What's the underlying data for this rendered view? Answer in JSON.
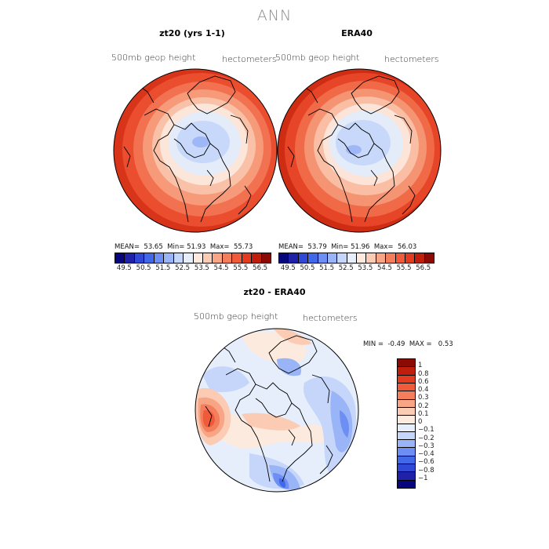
{
  "figure": {
    "title": "ANN"
  },
  "panels": [
    {
      "title": "zt20 (yrs 1-1)",
      "left_label": "500mb geop height",
      "right_label": "hectometers",
      "stats": {
        "mean_label": "MEAN=",
        "mean": "53.65",
        "min_label": "Min=",
        "min": "51.93",
        "max_label": "Max=",
        "max": "55.73"
      }
    },
    {
      "title": "ERA40",
      "left_label": "500mb geop height",
      "right_label": "hectometers",
      "stats": {
        "mean_label": "MEAN=",
        "mean": "53.79",
        "min_label": "Min=",
        "min": "51.96",
        "max_label": "Max=",
        "max": "56.03"
      }
    },
    {
      "title": "zt20 - ERA40",
      "left_label": "500mb geop height",
      "right_label": "hectometers",
      "stats": {
        "min_label": "MIN =",
        "min": "-0.49",
        "max_label": "MAX =",
        "max": "0.53"
      }
    }
  ],
  "colorbar_abs": {
    "ticks": [
      "49.5",
      "50.5",
      "51.5",
      "52.5",
      "53.5",
      "54.5",
      "55.5",
      "56.5"
    ],
    "colors": [
      "#08067f",
      "#1f22a8",
      "#2f48d6",
      "#4068e8",
      "#6d8ef3",
      "#9ab4f8",
      "#c6d6fb",
      "#e6eefb",
      "#fdeadf",
      "#fbcbb3",
      "#f8a585",
      "#f47d5c",
      "#ee5a3a",
      "#e23b1f",
      "#c01e0d",
      "#8b0b04"
    ]
  },
  "colorbar_diff": {
    "labels": [
      "1",
      "0.8",
      "0.6",
      "0.4",
      "0.3",
      "0.2",
      "0.1",
      "0",
      "−0.1",
      "−0.2",
      "−0.3",
      "−0.4",
      "−0.6",
      "−0.8",
      "−1"
    ],
    "colors": [
      "#8b0b04",
      "#c01e0d",
      "#e23b1f",
      "#ee5a3a",
      "#f47d5c",
      "#f8a585",
      "#fbcbb3",
      "#fdeadf",
      "#e6eefb",
      "#c6d6fb",
      "#9ab4f8",
      "#6d8ef3",
      "#4068e8",
      "#2f48d6",
      "#1f22a8",
      "#08067f"
    ]
  },
  "chart_data": [
    {
      "type": "heatmap",
      "projection": "polar stereographic (north pole)",
      "title": "zt20 (yrs 1-1)",
      "variable": "500mb geop height",
      "units": "hectometers",
      "levels": [
        49.5,
        50.5,
        51.5,
        52.5,
        53.5,
        54.5,
        55.5,
        56.5
      ],
      "mean": 53.65,
      "min": 51.93,
      "max": 55.73
    },
    {
      "type": "heatmap",
      "projection": "polar stereographic (north pole)",
      "title": "ERA40",
      "variable": "500mb geop height",
      "units": "hectometers",
      "levels": [
        49.5,
        50.5,
        51.5,
        52.5,
        53.5,
        54.5,
        55.5,
        56.5
      ],
      "mean": 53.79,
      "min": 51.96,
      "max": 56.03
    },
    {
      "type": "heatmap",
      "projection": "polar stereographic (north pole)",
      "title": "zt20 - ERA40",
      "variable": "500mb geop height",
      "units": "hectometers",
      "levels": [
        -1,
        -0.8,
        -0.6,
        -0.4,
        -0.3,
        -0.2,
        -0.1,
        0,
        0.1,
        0.2,
        0.3,
        0.4,
        0.6,
        0.8,
        1
      ],
      "min": -0.49,
      "max": 0.53
    }
  ]
}
